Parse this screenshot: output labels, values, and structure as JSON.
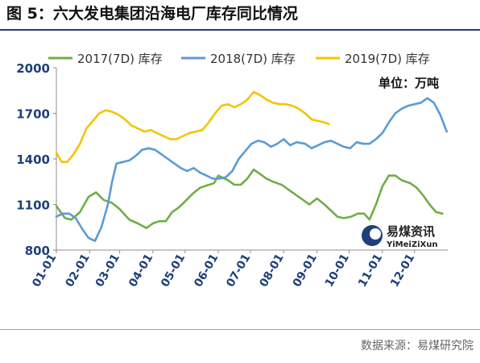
{
  "title": "图 5：六大发电集团沿海电厂库存同比情况",
  "source": "数据来源：易煤研究院",
  "watermark": {
    "cn": "易煤资讯",
    "en": "YiMeiZiXun"
  },
  "chart_data": {
    "type": "line",
    "title": "",
    "unit_label": "单位：万吨",
    "ylim": [
      800,
      2000
    ],
    "yticks": [
      800,
      1100,
      1400,
      1700,
      2000
    ],
    "x_range_days": [
      0,
      365
    ],
    "x_ticks": [
      "01-01",
      "02-01",
      "03-01",
      "04-01",
      "05-01",
      "06-01",
      "07-01",
      "08-01",
      "09-01",
      "10-01",
      "11-01",
      "12-01"
    ],
    "x_tick_days": [
      0,
      31,
      59,
      90,
      120,
      151,
      181,
      212,
      243,
      273,
      304,
      334
    ],
    "legend_position": "top",
    "grid": false,
    "series": [
      {
        "name": "2017(7D) 库存",
        "color": "#70ad47",
        "points": [
          [
            0,
            1090
          ],
          [
            8,
            1010
          ],
          [
            14,
            1000
          ],
          [
            22,
            1050
          ],
          [
            30,
            1150
          ],
          [
            37,
            1180
          ],
          [
            44,
            1130
          ],
          [
            52,
            1110
          ],
          [
            59,
            1070
          ],
          [
            68,
            1000
          ],
          [
            76,
            975
          ],
          [
            84,
            945
          ],
          [
            90,
            975
          ],
          [
            96,
            990
          ],
          [
            102,
            990
          ],
          [
            108,
            1050
          ],
          [
            114,
            1080
          ],
          [
            120,
            1120
          ],
          [
            127,
            1170
          ],
          [
            134,
            1210
          ],
          [
            140,
            1225
          ],
          [
            147,
            1240
          ],
          [
            151,
            1290
          ],
          [
            160,
            1260
          ],
          [
            166,
            1230
          ],
          [
            172,
            1230
          ],
          [
            178,
            1270
          ],
          [
            184,
            1330
          ],
          [
            190,
            1300
          ],
          [
            196,
            1270
          ],
          [
            202,
            1250
          ],
          [
            210,
            1230
          ],
          [
            216,
            1200
          ],
          [
            222,
            1170
          ],
          [
            228,
            1140
          ],
          [
            236,
            1100
          ],
          [
            243,
            1140
          ],
          [
            250,
            1100
          ],
          [
            256,
            1060
          ],
          [
            262,
            1020
          ],
          [
            268,
            1010
          ],
          [
            275,
            1020
          ],
          [
            281,
            1040
          ],
          [
            287,
            1040
          ],
          [
            292,
            1000
          ],
          [
            298,
            1100
          ],
          [
            304,
            1220
          ],
          [
            310,
            1290
          ],
          [
            316,
            1290
          ],
          [
            322,
            1260
          ],
          [
            330,
            1240
          ],
          [
            336,
            1210
          ],
          [
            342,
            1160
          ],
          [
            348,
            1100
          ],
          [
            354,
            1050
          ],
          [
            360,
            1040
          ]
        ]
      },
      {
        "name": "2018(7D) 库存",
        "color": "#5b9bd5",
        "points": [
          [
            0,
            1020
          ],
          [
            6,
            1040
          ],
          [
            12,
            1040
          ],
          [
            18,
            1010
          ],
          [
            24,
            940
          ],
          [
            30,
            880
          ],
          [
            36,
            860
          ],
          [
            42,
            950
          ],
          [
            48,
            1100
          ],
          [
            52,
            1250
          ],
          [
            56,
            1370
          ],
          [
            62,
            1380
          ],
          [
            68,
            1390
          ],
          [
            74,
            1420
          ],
          [
            80,
            1460
          ],
          [
            86,
            1470
          ],
          [
            92,
            1460
          ],
          [
            98,
            1430
          ],
          [
            104,
            1400
          ],
          [
            110,
            1370
          ],
          [
            116,
            1340
          ],
          [
            122,
            1320
          ],
          [
            128,
            1340
          ],
          [
            134,
            1310
          ],
          [
            140,
            1290
          ],
          [
            146,
            1270
          ],
          [
            152,
            1270
          ],
          [
            158,
            1280
          ],
          [
            164,
            1320
          ],
          [
            170,
            1400
          ],
          [
            176,
            1450
          ],
          [
            182,
            1500
          ],
          [
            188,
            1520
          ],
          [
            194,
            1510
          ],
          [
            200,
            1480
          ],
          [
            206,
            1500
          ],
          [
            212,
            1530
          ],
          [
            218,
            1490
          ],
          [
            224,
            1510
          ],
          [
            232,
            1500
          ],
          [
            238,
            1470
          ],
          [
            244,
            1490
          ],
          [
            250,
            1510
          ],
          [
            256,
            1520
          ],
          [
            262,
            1500
          ],
          [
            268,
            1480
          ],
          [
            274,
            1470
          ],
          [
            280,
            1510
          ],
          [
            286,
            1500
          ],
          [
            292,
            1500
          ],
          [
            298,
            1530
          ],
          [
            304,
            1570
          ],
          [
            310,
            1640
          ],
          [
            316,
            1700
          ],
          [
            322,
            1730
          ],
          [
            328,
            1750
          ],
          [
            334,
            1760
          ],
          [
            340,
            1770
          ],
          [
            346,
            1800
          ],
          [
            352,
            1770
          ],
          [
            358,
            1690
          ],
          [
            364,
            1580
          ]
        ]
      },
      {
        "name": "2019(7D) 库存",
        "color": "#f5c400",
        "points": [
          [
            0,
            1440
          ],
          [
            5,
            1380
          ],
          [
            10,
            1380
          ],
          [
            16,
            1430
          ],
          [
            22,
            1500
          ],
          [
            28,
            1600
          ],
          [
            34,
            1650
          ],
          [
            40,
            1700
          ],
          [
            46,
            1720
          ],
          [
            52,
            1710
          ],
          [
            58,
            1690
          ],
          [
            64,
            1660
          ],
          [
            70,
            1620
          ],
          [
            76,
            1600
          ],
          [
            82,
            1580
          ],
          [
            88,
            1590
          ],
          [
            94,
            1570
          ],
          [
            100,
            1550
          ],
          [
            106,
            1530
          ],
          [
            112,
            1530
          ],
          [
            118,
            1550
          ],
          [
            124,
            1570
          ],
          [
            130,
            1580
          ],
          [
            136,
            1590
          ],
          [
            142,
            1640
          ],
          [
            148,
            1700
          ],
          [
            154,
            1750
          ],
          [
            160,
            1760
          ],
          [
            166,
            1740
          ],
          [
            172,
            1760
          ],
          [
            178,
            1790
          ],
          [
            184,
            1840
          ],
          [
            190,
            1820
          ],
          [
            196,
            1790
          ],
          [
            202,
            1770
          ],
          [
            208,
            1760
          ],
          [
            214,
            1760
          ],
          [
            220,
            1750
          ],
          [
            226,
            1730
          ],
          [
            232,
            1700
          ],
          [
            238,
            1660
          ],
          [
            244,
            1650
          ],
          [
            250,
            1640
          ],
          [
            254,
            1630
          ]
        ]
      }
    ]
  }
}
